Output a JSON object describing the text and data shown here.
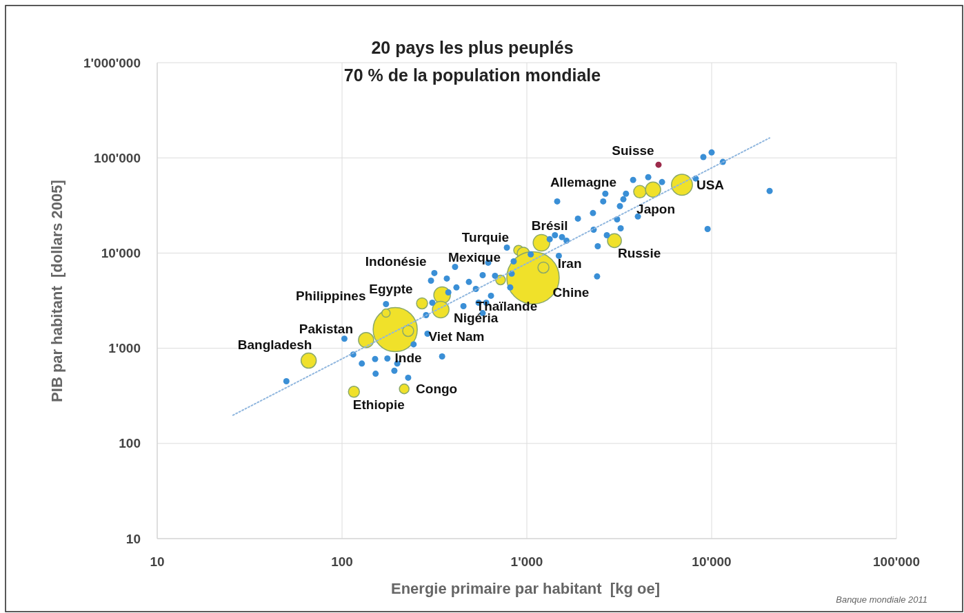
{
  "chart_data": {
    "type": "scatter",
    "title": "20 pays les plus peuplés",
    "subtitle": "70 % de la population mondiale",
    "xlabel": "Energie primaire par habitant  [kg oe]",
    "ylabel": "PIB par habitant  [dollars 2005]",
    "log": "xy",
    "grid": true,
    "xlim": [
      10,
      100000
    ],
    "ylim": [
      10,
      1000000
    ],
    "xticks": [
      10,
      100,
      {
        "value": 1000,
        "label": "1'000"
      },
      {
        "value": 10000,
        "label": "10'000"
      },
      {
        "value": 100000,
        "label": "100'000"
      }
    ],
    "yticks": [
      10,
      100,
      {
        "value": 1000,
        "label": "1'000"
      },
      {
        "value": 10000,
        "label": "10'000"
      },
      {
        "value": 100000,
        "label": "100'000"
      },
      {
        "value": 1000000,
        "label": "1'000'000"
      }
    ],
    "series": [
      {
        "type": "bubble",
        "color": "#f0e12a",
        "x": [
          66,
          135,
          194,
          173,
          228,
          116,
          217,
          271,
          348,
          342,
          721,
          902,
          958,
          1080,
          1230,
          1200,
          2980,
          4090,
          4820,
          6910
        ],
        "values": [
          741,
          1220,
          1570,
          2340,
          1520,
          349,
          374,
          2960,
          3610,
          2550,
          5220,
          10700,
          9900,
          5490,
          7040,
          12800,
          13500,
          44100,
          46400,
          52200
        ],
        "sizes": [
          0.084,
          0.084,
          0.71,
          0.025,
          0.044,
          0.044,
          0.034,
          0.044,
          0.1,
          0.1,
          0.034,
          0.034,
          0.056,
          1,
          0.044,
          0.1,
          0.07,
          0.056,
          0.084,
          0.16
        ]
      },
      {
        "color": "#3a8fd6",
        "x": [
          50,
          103,
          115,
          128,
          151,
          152,
          176,
          199,
          192,
          228,
          348,
          244,
          285,
          290,
          316,
          308,
          369,
          409,
          416,
          454,
          486,
          530,
          577,
          548,
          577,
          618,
          640,
          673,
          828,
          849,
          813,
          780,
          1050,
          1330,
          1420,
          1550,
          1640,
          1490,
          1460,
          1890,
          2280,
          2300,
          2590,
          2710,
          2420,
          2400,
          3080,
          3220,
          3190,
          3330,
          3440,
          3760,
          3990,
          4540,
          5390,
          9020,
          10000,
          11500,
          8200,
          20600,
          9510,
          303,
          2660,
          376,
          173,
          603
        ],
        "values": [
          450,
          1260,
          860,
          690,
          770,
          540,
          780,
          690,
          580,
          490,
          820,
          1100,
          2230,
          1420,
          6170,
          3010,
          5400,
          7160,
          4350,
          2770,
          4970,
          4200,
          5860,
          3010,
          2340,
          7920,
          3560,
          5770,
          6070,
          8180,
          4350,
          11400,
          9690,
          14000,
          15400,
          14700,
          13500,
          9350,
          34900,
          23000,
          26300,
          17600,
          34900,
          15400,
          11800,
          5680,
          22600,
          18200,
          31100,
          36700,
          42000,
          58600,
          24200,
          62700,
          55700,
          102000,
          114000,
          90600,
          60700,
          44900,
          17900,
          5130,
          42000,
          3860,
          2910,
          3010
        ]
      },
      {
        "color": "#9c2a4a",
        "x": [
          5160
        ],
        "values": [
          84700
        ]
      },
      {
        "type": "line",
        "color": "#8fb6de",
        "line_style": "dotted",
        "x": [
          25.7,
          20600
        ],
        "values": [
          198,
          162000
        ]
      }
    ],
    "annotations": [
      {
        "text": "Bangladesh",
        "x": 66,
        "y": 741
      },
      {
        "text": "Pakistan",
        "x": 135,
        "y": 1220
      },
      {
        "text": "Inde",
        "x": 194,
        "y": 1570
      },
      {
        "text": "Philippines",
        "x": 173,
        "y": 2340
      },
      {
        "text": "Viet Nam",
        "x": 228,
        "y": 1520
      },
      {
        "text": "Ethiopie",
        "x": 116,
        "y": 349
      },
      {
        "text": "Congo",
        "x": 217,
        "y": 374
      },
      {
        "text": "Egypte",
        "x": 271,
        "y": 2960
      },
      {
        "text": "Indonésie",
        "x": 348,
        "y": 3610
      },
      {
        "text": "Nigéria",
        "x": 342,
        "y": 2550
      },
      {
        "text": "Thaïlande",
        "x": 721,
        "y": 5220
      },
      {
        "text": "Turquie",
        "x": 902,
        "y": 10700
      },
      {
        "text": "Mexique",
        "x": 958,
        "y": 9900
      },
      {
        "text": "Chine",
        "x": 1080,
        "y": 5490
      },
      {
        "text": "Iran",
        "x": 1230,
        "y": 7040
      },
      {
        "text": "Brésil",
        "x": 1200,
        "y": 12800
      },
      {
        "text": "Russie",
        "x": 2980,
        "y": 13500
      },
      {
        "text": "Allemagne",
        "x": 4090,
        "y": 44100
      },
      {
        "text": "Japon",
        "x": 4820,
        "y": 46400
      },
      {
        "text": "USA",
        "x": 6910,
        "y": 52200
      },
      {
        "text": "Suisse",
        "x": 5160,
        "y": 84700
      },
      "Banque mondiale 2011"
    ]
  }
}
